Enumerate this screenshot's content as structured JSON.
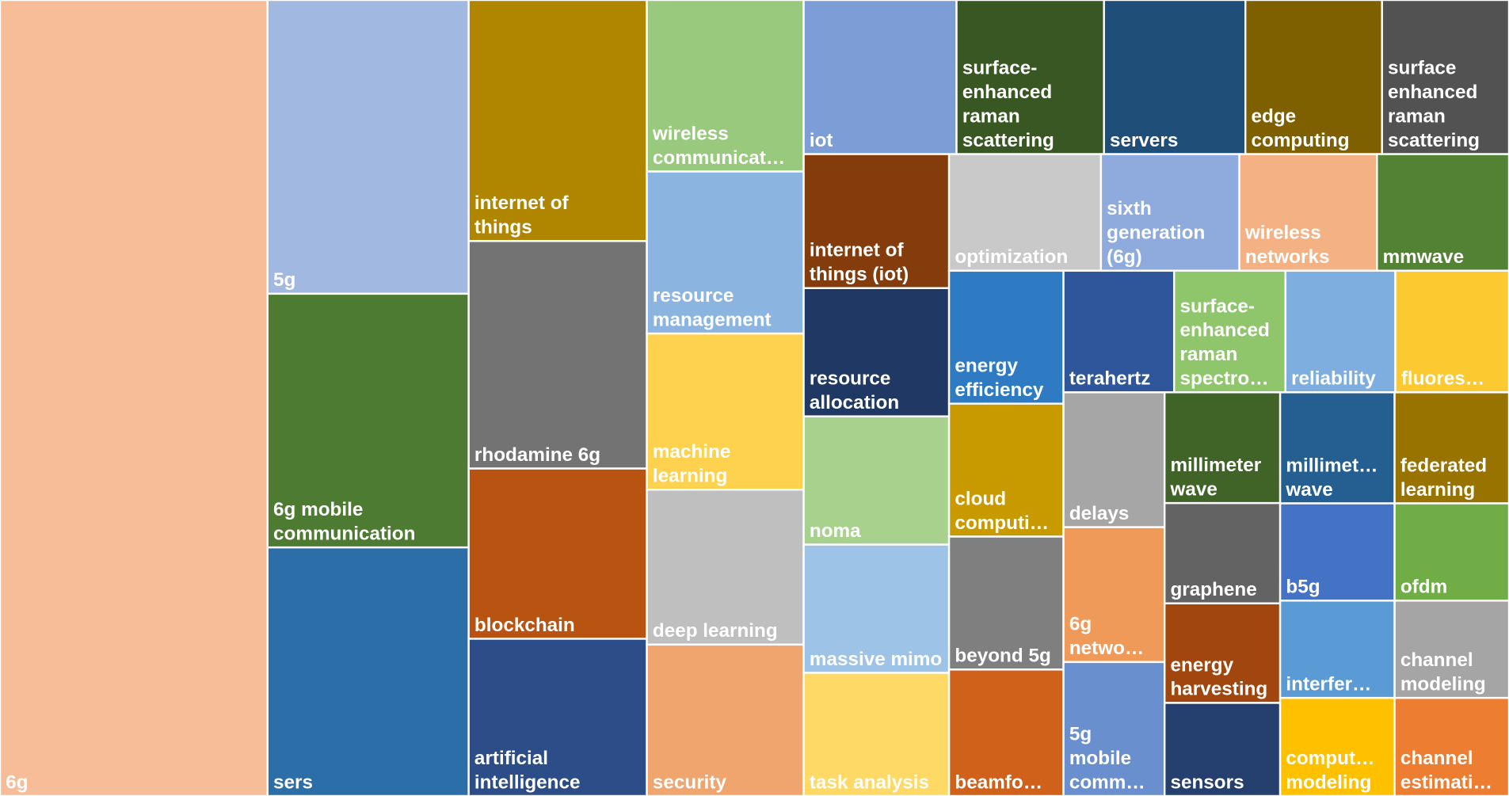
{
  "chart_data": {
    "type": "treemap",
    "categories": [
      "6g",
      "5g",
      "6g mobile communication",
      "sers",
      "internet of things",
      "rhodamine 6g",
      "blockchain",
      "artificial intelligence",
      "wireless communicat…",
      "resource management",
      "machine learning",
      "deep learning",
      "security",
      "iot",
      "surface-enhanced raman scattering",
      "servers",
      "edge computing",
      "surface enhanced raman scattering",
      "internet of things (iot)",
      "resource allocation",
      "noma",
      "massive mimo",
      "task analysis",
      "optimization",
      "sixth generation (6g)",
      "wireless networks",
      "mmwave",
      "energy efficiency",
      "cloud computi…",
      "beyond 5g",
      "beamfo…",
      "terahertz",
      "surface-enhanced raman spectro…",
      "reliability",
      "fluores…",
      "delays",
      "6g netwo…",
      "5g mobile comm…",
      "millimeter wave",
      "graphene",
      "energy harvesting",
      "sensors",
      "millimet… wave",
      "b5g",
      "interfer…",
      "comput… modeling",
      "federated learning",
      "ofdm",
      "channel modeling",
      "channel estimati…"
    ],
    "values": [
      229.6,
      63.7,
      55.0,
      53.9,
      46.3,
      43.7,
      32.7,
      30.2,
      29.0,
      27.4,
      26.4,
      26.2,
      25.6,
      25.4,
      24.5,
      23.5,
      22.7,
      21.1,
      21.0,
      20.1,
      20.1,
      20.1,
      19.3,
      19.1,
      17.4,
      17.3,
      16.6,
      16.4,
      16.4,
      16.4,
      15.6,
      14.5,
      14.6,
      14.4,
      14.9,
      14.7,
      14.7,
      14.6,
      13.8,
      12.5,
      12.4,
      11.6,
      13.7,
      12.0,
      12.0,
      12.1,
      13.7,
      12.0,
      12.0,
      12.1
    ],
    "colors": [
      "#f6bd98",
      "#a1b8e1",
      "#4e7b32",
      "#2c6ea8",
      "#b08500",
      "#737373",
      "#b85311",
      "#2c4d88",
      "#98c97c",
      "#8cb4e0",
      "#fed24e",
      "#bfbfbf",
      "#f0a46e",
      "#7c9dd6",
      "#385723",
      "#1f4e79",
      "#7f6000",
      "#525252",
      "#843c0c",
      "#203864",
      "#a9d18e",
      "#9dc3e6",
      "#ffd966",
      "#c9c9c9",
      "#8faadc",
      "#f4b183",
      "#548235",
      "#2e7bc3",
      "#c99a00",
      "#7f7f7f",
      "#d0611a",
      "#2f559a",
      "#8fc66b",
      "#7eaedf",
      "#fcc930",
      "#a6a6a6",
      "#f09a5a",
      "#6a8fcf",
      "#406428",
      "#636363",
      "#a0460e",
      "#253f6e",
      "#255e91",
      "#4472c4",
      "#5b9bd5",
      "#ffc000",
      "#997300",
      "#70ad47",
      "#a5a5a5",
      "#ed7d31"
    ]
  }
}
